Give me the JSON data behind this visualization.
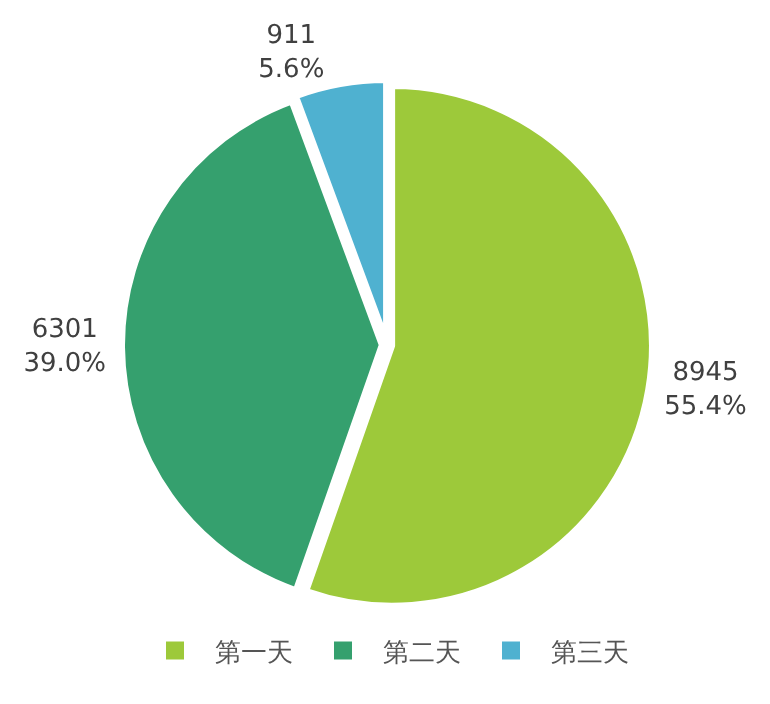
{
  "chart_data": {
    "type": "pie",
    "categories": [
      "第一天",
      "第二天",
      "第三天"
    ],
    "values": [
      8945,
      6301,
      911
    ],
    "colors": [
      "#9dc93a",
      "#35a06e",
      "#4fb1d0"
    ],
    "value_labels": [
      "8945\n55.4%",
      "6301\n39.0%",
      "911\n5.6%"
    ],
    "legend": "bottom"
  }
}
